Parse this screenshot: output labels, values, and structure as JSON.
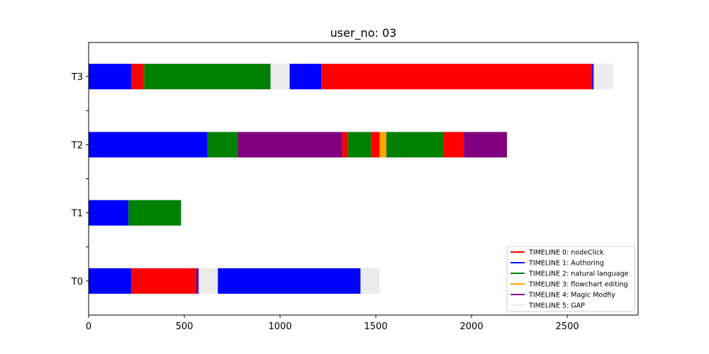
{
  "chart_data": {
    "type": "bar",
    "orientation": "horizontal-stacked-timeline",
    "title": "user_no: 03",
    "xlabel": "",
    "ylabel": "",
    "xlim": [
      0,
      2870
    ],
    "x_ticks": [
      0,
      500,
      1000,
      1500,
      2000,
      2500
    ],
    "categories": [
      "T0",
      "T1",
      "T2",
      "T3"
    ],
    "y_positions": [
      0,
      1,
      2,
      3
    ],
    "y_minor_ticks": [
      0.5,
      1.5,
      2.5
    ],
    "grid": false,
    "legend_position": "lower-right",
    "legend": [
      {
        "label": "TIMELINE 0: nodeClick",
        "color": "#ff0000"
      },
      {
        "label": "TIMELINE 1: Authoring",
        "color": "#0000ff"
      },
      {
        "label": "TIMELINE 2: natural language",
        "color": "#008000"
      },
      {
        "label": "TIMELINE 3: flowchart editing",
        "color": "#ffa500"
      },
      {
        "label": "TIMELINE 4: Magic Modfiy",
        "color": "#800080"
      },
      {
        "label": "TIMELINE 5: GAP",
        "color": "#ebebeb"
      }
    ],
    "rows": [
      {
        "category": "T0",
        "segments": [
          {
            "start": 0,
            "end": 222,
            "timeline": 1
          },
          {
            "start": 222,
            "end": 560,
            "timeline": 0
          },
          {
            "start": 560,
            "end": 575,
            "timeline": 4
          },
          {
            "start": 575,
            "end": 675,
            "timeline": 5
          },
          {
            "start": 675,
            "end": 1420,
            "timeline": 1
          },
          {
            "start": 1420,
            "end": 1520,
            "timeline": 5
          }
        ]
      },
      {
        "category": "T1",
        "segments": [
          {
            "start": 0,
            "end": 208,
            "timeline": 1
          },
          {
            "start": 208,
            "end": 483,
            "timeline": 2
          }
        ]
      },
      {
        "category": "T2",
        "segments": [
          {
            "start": 0,
            "end": 620,
            "timeline": 1
          },
          {
            "start": 620,
            "end": 780,
            "timeline": 2
          },
          {
            "start": 780,
            "end": 1325,
            "timeline": 4
          },
          {
            "start": 1325,
            "end": 1355,
            "timeline": 0
          },
          {
            "start": 1355,
            "end": 1475,
            "timeline": 2
          },
          {
            "start": 1475,
            "end": 1520,
            "timeline": 0
          },
          {
            "start": 1520,
            "end": 1555,
            "timeline": 3
          },
          {
            "start": 1555,
            "end": 1855,
            "timeline": 2
          },
          {
            "start": 1855,
            "end": 1960,
            "timeline": 0
          },
          {
            "start": 1960,
            "end": 2185,
            "timeline": 4
          }
        ]
      },
      {
        "category": "T3",
        "segments": [
          {
            "start": 0,
            "end": 222,
            "timeline": 1
          },
          {
            "start": 222,
            "end": 290,
            "timeline": 0
          },
          {
            "start": 290,
            "end": 950,
            "timeline": 2
          },
          {
            "start": 950,
            "end": 1050,
            "timeline": 5
          },
          {
            "start": 1050,
            "end": 1215,
            "timeline": 1
          },
          {
            "start": 1215,
            "end": 2630,
            "timeline": 0
          },
          {
            "start": 2630,
            "end": 2638,
            "timeline": 1
          },
          {
            "start": 2638,
            "end": 2738,
            "timeline": 5
          }
        ]
      }
    ]
  }
}
